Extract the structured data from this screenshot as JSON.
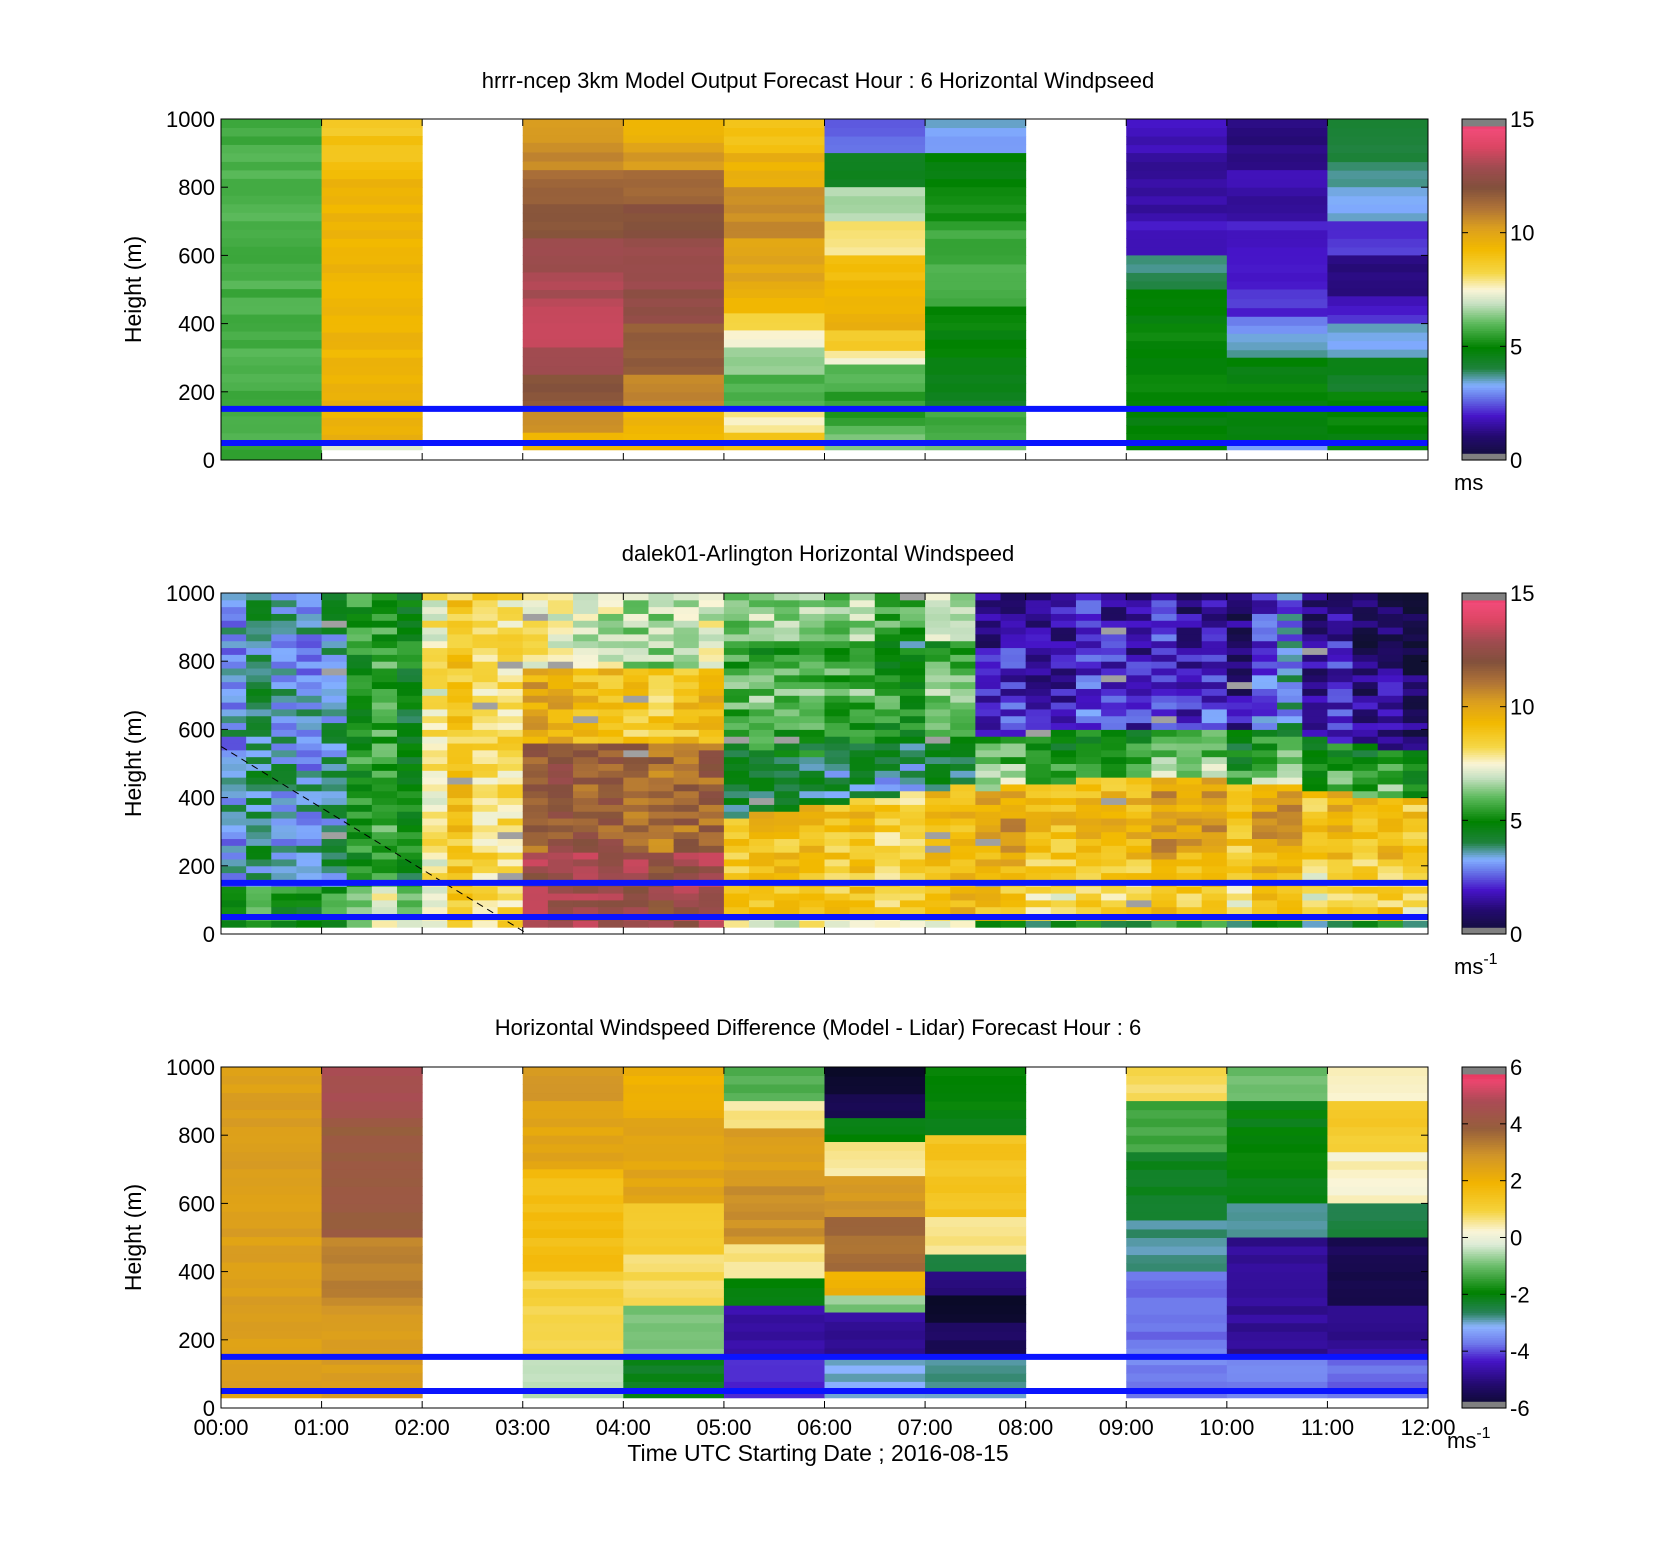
{
  "figure": {
    "xlabel": "Time UTC  Starting Date ; 2016-08-15",
    "x_tick_labels": [
      "00:00",
      "01:00",
      "02:00",
      "03:00",
      "04:00",
      "05:00",
      "06:00",
      "07:00",
      "08:00",
      "09:00",
      "10:00",
      "11:00",
      "12:00"
    ],
    "colors": {
      "guide_lines": "#0a14ff",
      "missing": "#ffffff",
      "colorbar_end": "#808080"
    }
  },
  "chart_data": [
    {
      "type": "heatmap",
      "title": "hrrr-ncep 3km Model Output   Forecast Hour : 6 Horizontal Windpseed",
      "ylabel": "Height (m)",
      "xlim": [
        0,
        12
      ],
      "ylim": [
        0,
        1000
      ],
      "y_ticks": [
        0,
        200,
        400,
        600,
        800,
        1000
      ],
      "colorbar": {
        "min": 0,
        "max": 15,
        "ticks": [
          0,
          5,
          10,
          15
        ],
        "unit": "ms",
        "unit_sup": ""
      },
      "guide_lines_m": [
        50,
        150
      ],
      "columns": [
        {
          "t0": 0,
          "t1": 1,
          "bands": [
            [
              30,
              1000,
              5.8
            ],
            [
              0,
              30,
              5.5
            ]
          ]
        },
        {
          "t0": 1,
          "t1": 2,
          "bands": [
            [
              950,
              1000,
              8.8
            ],
            [
              850,
              950,
              9.0
            ],
            [
              300,
              850,
              9.4
            ],
            [
              50,
              300,
              9.6
            ],
            [
              30,
              50,
              7.4
            ]
          ]
        },
        {
          "t0": 2,
          "t1": 3,
          "bands": []
        },
        {
          "t0": 3,
          "t1": 4,
          "bands": [
            [
              930,
              1000,
              10.2
            ],
            [
              850,
              930,
              10.6
            ],
            [
              750,
              850,
              11.4
            ],
            [
              650,
              750,
              12.0
            ],
            [
              550,
              650,
              12.7
            ],
            [
              450,
              550,
              13.1
            ],
            [
              330,
              450,
              13.6
            ],
            [
              250,
              330,
              13.0
            ],
            [
              150,
              250,
              11.8
            ],
            [
              80,
              150,
              10.6
            ],
            [
              30,
              80,
              9.5
            ]
          ]
        },
        {
          "t0": 4,
          "t1": 5,
          "bands": [
            [
              930,
              1000,
              9.4
            ],
            [
              850,
              930,
              10.2
            ],
            [
              750,
              850,
              11.4
            ],
            [
              650,
              750,
              12.0
            ],
            [
              500,
              650,
              12.8
            ],
            [
              400,
              500,
              12.4
            ],
            [
              250,
              400,
              11.6
            ],
            [
              150,
              250,
              10.8
            ],
            [
              30,
              150,
              9.4
            ]
          ]
        },
        {
          "t0": 5,
          "t1": 6,
          "bands": [
            [
              900,
              1000,
              9.0
            ],
            [
              800,
              900,
              9.6
            ],
            [
              650,
              800,
              10.6
            ],
            [
              500,
              650,
              10.0
            ],
            [
              430,
              500,
              9.5
            ],
            [
              380,
              430,
              8.4
            ],
            [
              330,
              380,
              7.5
            ],
            [
              250,
              330,
              6.5
            ],
            [
              150,
              250,
              5.8
            ],
            [
              80,
              150,
              7.8
            ],
            [
              30,
              80,
              9.0
            ]
          ]
        },
        {
          "t0": 6,
          "t1": 7,
          "bands": [
            [
              900,
              1000,
              2.6
            ],
            [
              800,
              900,
              4.6
            ],
            [
              700,
              800,
              6.7
            ],
            [
              600,
              700,
              7.9
            ],
            [
              480,
              600,
              9.2
            ],
            [
              380,
              480,
              9.6
            ],
            [
              320,
              380,
              8.6
            ],
            [
              280,
              320,
              7.6
            ],
            [
              200,
              280,
              6.0
            ],
            [
              100,
              200,
              5.5
            ],
            [
              30,
              100,
              6.2
            ]
          ]
        },
        {
          "t0": 7,
          "t1": 8,
          "bands": [
            [
              900,
              1000,
              3.3
            ],
            [
              800,
              900,
              4.8
            ],
            [
              700,
              800,
              5.2
            ],
            [
              600,
              700,
              5.6
            ],
            [
              450,
              600,
              5.8
            ],
            [
              380,
              450,
              5.0
            ],
            [
              250,
              380,
              4.8
            ],
            [
              150,
              250,
              4.5
            ],
            [
              80,
              150,
              5.6
            ],
            [
              30,
              80,
              6.0
            ]
          ]
        },
        {
          "t0": 8,
          "t1": 9,
          "bands": []
        },
        {
          "t0": 9,
          "t1": 10,
          "bands": [
            [
              900,
              1000,
              1.8
            ],
            [
              700,
              900,
              1.5
            ],
            [
              600,
              700,
              1.9
            ],
            [
              500,
              600,
              3.9
            ],
            [
              400,
              500,
              4.8
            ],
            [
              250,
              400,
              5.0
            ],
            [
              150,
              250,
              5.0
            ],
            [
              30,
              150,
              4.8
            ]
          ]
        },
        {
          "t0": 10,
          "t1": 11,
          "bands": [
            [
              850,
              1000,
              1.2
            ],
            [
              700,
              850,
              1.6
            ],
            [
              500,
              700,
              2.0
            ],
            [
              420,
              500,
              2.2
            ],
            [
              370,
              420,
              3.0
            ],
            [
              300,
              370,
              3.6
            ],
            [
              250,
              300,
              4.8
            ],
            [
              150,
              250,
              4.9
            ],
            [
              50,
              150,
              4.7
            ],
            [
              30,
              50,
              3.2
            ]
          ]
        },
        {
          "t0": 11,
          "t1": 12,
          "bands": [
            [
              900,
              1000,
              4.2
            ],
            [
              800,
              900,
              3.9
            ],
            [
              700,
              800,
              3.4
            ],
            [
              600,
              700,
              2.3
            ],
            [
              480,
              600,
              1.3
            ],
            [
              400,
              480,
              2.0
            ],
            [
              300,
              400,
              3.4
            ],
            [
              200,
              300,
              4.4
            ],
            [
              30,
              200,
              4.9
            ]
          ]
        }
      ]
    },
    {
      "type": "heatmap",
      "title": "dalek01-Arlington  Horizontal Windspeed",
      "ylabel": "Height (m)",
      "xlim": [
        0,
        12
      ],
      "ylim": [
        0,
        1000
      ],
      "y_ticks": [
        0,
        200,
        400,
        600,
        800,
        1000
      ],
      "colorbar": {
        "min": 0,
        "max": 15,
        "ticks": [
          0,
          5,
          10,
          15
        ],
        "unit": "ms",
        "unit_sup": "-1"
      },
      "guide_lines_m": [
        50,
        150
      ],
      "data_range_hours": [
        0,
        11.8
      ],
      "dashed_line": [
        [
          0,
          550
        ],
        [
          3.05,
          0
        ]
      ]
    },
    {
      "type": "heatmap",
      "title": "Horizontal Windspeed Difference (Model - Lidar) Forecast Hour : 6",
      "ylabel": "Height (m)",
      "xlim": [
        0,
        12
      ],
      "ylim": [
        0,
        1000
      ],
      "y_ticks": [
        0,
        200,
        400,
        600,
        800,
        1000
      ],
      "colorbar": {
        "min": -6,
        "max": 6,
        "ticks": [
          -6,
          -4,
          -2,
          0,
          2,
          4,
          6
        ],
        "unit": "ms",
        "unit_sup": "-1"
      },
      "guide_lines_m": [
        50,
        150
      ],
      "columns": [
        {
          "t0": 0,
          "t1": 1,
          "bands": [
            [
              30,
              1000,
              2.6
            ]
          ]
        },
        {
          "t0": 1,
          "t1": 2,
          "bands": [
            [
              850,
              1000,
              4.6
            ],
            [
              500,
              850,
              4.0
            ],
            [
              300,
              500,
              3.2
            ],
            [
              30,
              300,
              2.7
            ]
          ]
        },
        {
          "t0": 2,
          "t1": 3,
          "bands": []
        },
        {
          "t0": 3,
          "t1": 4,
          "bands": [
            [
              900,
              1000,
              2.8
            ],
            [
              700,
              900,
              2.4
            ],
            [
              400,
              700,
              1.6
            ],
            [
              150,
              400,
              1.0
            ],
            [
              30,
              150,
              -0.5
            ]
          ]
        },
        {
          "t0": 4,
          "t1": 5,
          "bands": [
            [
              850,
              1000,
              2.0
            ],
            [
              600,
              850,
              2.4
            ],
            [
              450,
              600,
              1.2
            ],
            [
              300,
              450,
              0.8
            ],
            [
              150,
              300,
              -0.8
            ],
            [
              30,
              150,
              -2.2
            ]
          ]
        },
        {
          "t0": 5,
          "t1": 6,
          "bands": [
            [
              900,
              1000,
              -1.2
            ],
            [
              820,
              900,
              0.6
            ],
            [
              650,
              820,
              2.6
            ],
            [
              480,
              650,
              3.0
            ],
            [
              380,
              480,
              0.6
            ],
            [
              300,
              380,
              -2.0
            ],
            [
              150,
              300,
              -4.6
            ],
            [
              30,
              150,
              -4.2
            ]
          ]
        },
        {
          "t0": 6,
          "t1": 7,
          "bands": [
            [
              920,
              1000,
              -6.0
            ],
            [
              850,
              920,
              -5.4
            ],
            [
              780,
              850,
              -2.0
            ],
            [
              680,
              780,
              0.5
            ],
            [
              560,
              680,
              2.8
            ],
            [
              400,
              560,
              3.6
            ],
            [
              330,
              400,
              2.0
            ],
            [
              280,
              330,
              -0.8
            ],
            [
              150,
              280,
              -4.8
            ],
            [
              30,
              150,
              -3.0
            ]
          ]
        },
        {
          "t0": 7,
          "t1": 8,
          "bands": [
            [
              800,
              1000,
              -2.0
            ],
            [
              560,
              800,
              1.4
            ],
            [
              450,
              560,
              0.6
            ],
            [
              400,
              450,
              -2.4
            ],
            [
              330,
              400,
              -5.0
            ],
            [
              250,
              330,
              -6.0
            ],
            [
              150,
              250,
              -5.4
            ],
            [
              30,
              150,
              -2.8
            ]
          ]
        },
        {
          "t0": 8,
          "t1": 9,
          "bands": []
        },
        {
          "t0": 9,
          "t1": 10,
          "bands": [
            [
              900,
              1000,
              0.8
            ],
            [
              750,
              900,
              -1.4
            ],
            [
              550,
              750,
              -2.2
            ],
            [
              400,
              550,
              -2.8
            ],
            [
              200,
              400,
              -3.8
            ],
            [
              30,
              200,
              -3.6
            ]
          ]
        },
        {
          "t0": 10,
          "t1": 11,
          "bands": [
            [
              900,
              1000,
              -1.0
            ],
            [
              600,
              900,
              -2.0
            ],
            [
              500,
              600,
              -2.8
            ],
            [
              150,
              500,
              -4.8
            ],
            [
              30,
              150,
              -3.6
            ]
          ]
        },
        {
          "t0": 11,
          "t1": 12,
          "bands": [
            [
              900,
              1000,
              0.4
            ],
            [
              750,
              900,
              1.2
            ],
            [
              600,
              750,
              0.3
            ],
            [
              500,
              600,
              -2.4
            ],
            [
              300,
              500,
              -5.5
            ],
            [
              150,
              300,
              -4.8
            ],
            [
              30,
              150,
              -3.8
            ]
          ]
        }
      ]
    }
  ]
}
